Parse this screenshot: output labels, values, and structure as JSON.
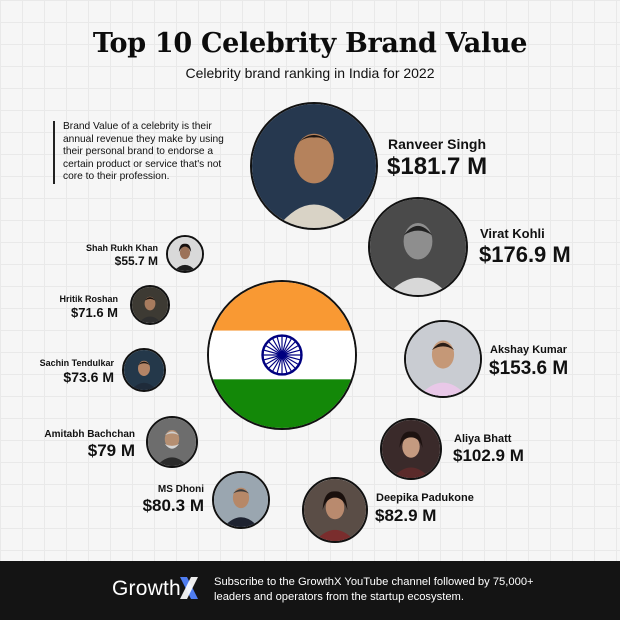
{
  "header": {
    "title": "Top 10 Celebrity Brand Value",
    "subtitle": "Celebrity brand ranking in India for 2022"
  },
  "description": "Brand Value of a celebrity is their annual revenue they make by using their personal brand to endorse a certain product or service that's not core to their profession.",
  "celebrities": [
    {
      "name": "Ranveer Singh",
      "value": "$181.7 M"
    },
    {
      "name": "Virat Kohli",
      "value": "$176.9 M"
    },
    {
      "name": "Akshay Kumar",
      "value": "$153.6 M"
    },
    {
      "name": "Aliya Bhatt",
      "value": "$102.9 M"
    },
    {
      "name": "Deepika Padukone",
      "value": "$82.9 M"
    },
    {
      "name": "MS Dhoni",
      "value": "$80.3 M"
    },
    {
      "name": "Amitabh Bachchan",
      "value": "$79 M"
    },
    {
      "name": "Sachin Tendulkar",
      "value": "$73.6 M"
    },
    {
      "name": "Hritik Roshan",
      "value": "$71.6 M"
    },
    {
      "name": "Shah Rukh Khan",
      "value": "$55.7 M"
    }
  ],
  "footer": {
    "brand": "Growth",
    "brand_mark": "X",
    "text": "Subscribe to the GrowthX YouTube channel followed by 75,000+ leaders and operators from the startup ecosystem."
  },
  "colors": {
    "saffron": "#f99933",
    "green": "#138808",
    "chakra": "#000080",
    "footer_bg": "#141414",
    "brand_mark": "#4f7df0"
  }
}
